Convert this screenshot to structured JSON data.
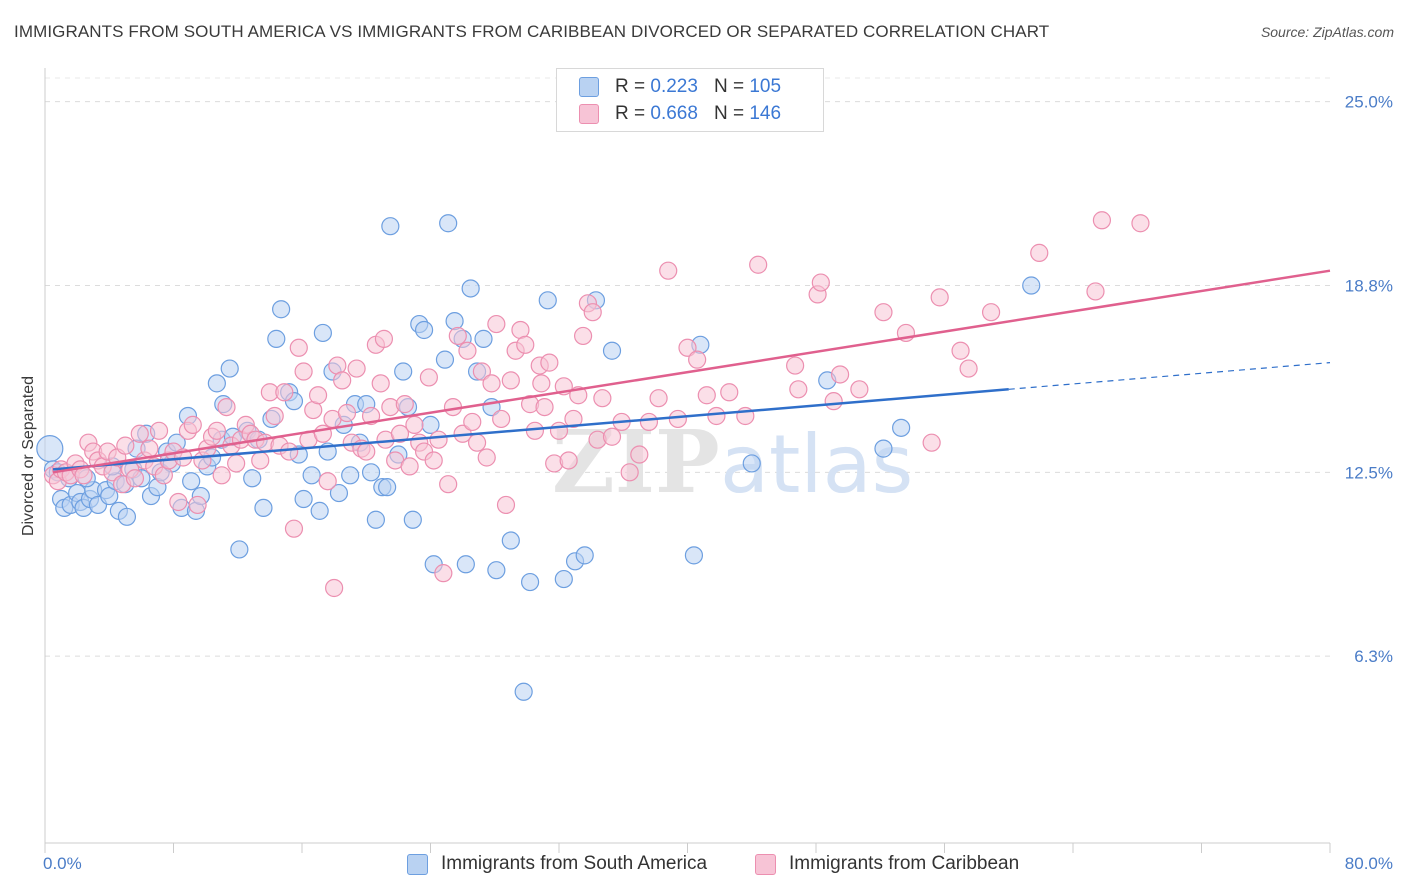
{
  "header": {
    "title": "IMMIGRANTS FROM SOUTH AMERICA VS IMMIGRANTS FROM CARIBBEAN DIVORCED OR SEPARATED CORRELATION CHART",
    "source": "Source: ZipAtlas.com"
  },
  "legend_stats": [
    {
      "r_label": "R =",
      "r_value": "0.223",
      "n_label": "N =",
      "n_value": "105"
    },
    {
      "r_label": "R =",
      "r_value": "0.668",
      "n_label": "N =",
      "n_value": "146"
    }
  ],
  "colors": {
    "blue_fill": "#b9d2f2",
    "blue_stroke": "#6d9fe0",
    "blue_line": "#2f6fca",
    "pink_fill": "#f7c4d6",
    "pink_stroke": "#ec8fb0",
    "pink_line": "#e0608e",
    "tick_text": "#4a7cc7"
  },
  "watermark": {
    "part1": "ZIP",
    "part2": "atlas"
  },
  "chart_data": {
    "type": "scatter",
    "title": "IMMIGRANTS FROM SOUTH AMERICA VS IMMIGRANTS FROM CARIBBEAN DIVORCED OR SEPARATED CORRELATION CHART",
    "xlabel": "",
    "ylabel": "Divorced or Separated",
    "xlim": [
      0,
      80
    ],
    "ylim": [
      0,
      26.0
    ],
    "x_tick_labels": [
      "0.0%",
      "80.0%"
    ],
    "y_ticks": [
      6.3,
      12.5,
      18.8,
      25.0
    ],
    "y_tick_labels": [
      "6.3%",
      "12.5%",
      "18.8%",
      "25.0%"
    ],
    "grid": "horizontal dashed",
    "legend_position": "bottom",
    "series": [
      {
        "name": "Immigrants from South America",
        "color": "#b9d2f2",
        "R": 0.223,
        "N": 105,
        "trend": {
          "x0": 0.5,
          "y0": 12.6,
          "x1": 60,
          "y1": 15.3,
          "dash_to_x": 80,
          "dash_to_y": 16.2
        },
        "points": [
          [
            0.3,
            13.3
          ],
          [
            0.5,
            12.6
          ],
          [
            0.8,
            12.5
          ],
          [
            1,
            11.6
          ],
          [
            1.2,
            11.3
          ],
          [
            1.5,
            12.3
          ],
          [
            1.6,
            11.4
          ],
          [
            2,
            11.8
          ],
          [
            2.2,
            11.5
          ],
          [
            2.4,
            11.3
          ],
          [
            2.8,
            11.6
          ],
          [
            3,
            11.9
          ],
          [
            3.3,
            11.4
          ],
          [
            3.8,
            11.9
          ],
          [
            4,
            11.7
          ],
          [
            4.4,
            12.2
          ],
          [
            4.6,
            11.2
          ],
          [
            5,
            12.1
          ],
          [
            5.1,
            11
          ],
          [
            5.5,
            12.6
          ],
          [
            5.7,
            13.3
          ],
          [
            6,
            12.3
          ],
          [
            6.3,
            13.8
          ],
          [
            6.6,
            11.7
          ],
          [
            7,
            12
          ],
          [
            7.2,
            12.5
          ],
          [
            7.6,
            13.2
          ],
          [
            7.9,
            12.8
          ],
          [
            8.2,
            13.5
          ],
          [
            8.5,
            11.3
          ],
          [
            8.9,
            14.4
          ],
          [
            9.1,
            12.2
          ],
          [
            9.4,
            11.2
          ],
          [
            9.7,
            11.7
          ],
          [
            10.1,
            12.7
          ],
          [
            10.4,
            13
          ],
          [
            10.7,
            15.5
          ],
          [
            11,
            13.6
          ],
          [
            11.5,
            16
          ],
          [
            11.7,
            13.7
          ],
          [
            12.1,
            9.9
          ],
          [
            12.6,
            13.9
          ],
          [
            12.9,
            12.3
          ],
          [
            13.3,
            13.6
          ],
          [
            13.6,
            11.3
          ],
          [
            14.1,
            14.3
          ],
          [
            14.4,
            17
          ],
          [
            14.7,
            18
          ],
          [
            15.2,
            15.2
          ],
          [
            15.5,
            14.9
          ],
          [
            15.8,
            13.1
          ],
          [
            16.1,
            11.6
          ],
          [
            16.6,
            12.4
          ],
          [
            17.1,
            11.2
          ],
          [
            17.3,
            17.2
          ],
          [
            17.6,
            13.2
          ],
          [
            17.9,
            15.9
          ],
          [
            18.3,
            11.8
          ],
          [
            18.6,
            14.1
          ],
          [
            19,
            12.4
          ],
          [
            19.3,
            14.8
          ],
          [
            19.6,
            13.5
          ],
          [
            20,
            14.8
          ],
          [
            20.3,
            12.5
          ],
          [
            20.6,
            10.9
          ],
          [
            21,
            12
          ],
          [
            21.3,
            12
          ],
          [
            21.5,
            20.8
          ],
          [
            22,
            13.1
          ],
          [
            22.3,
            15.9
          ],
          [
            22.6,
            14.7
          ],
          [
            22.9,
            10.9
          ],
          [
            23.3,
            17.5
          ],
          [
            23.6,
            17.3
          ],
          [
            24,
            14.1
          ],
          [
            24.2,
            9.4
          ],
          [
            24.9,
            16.3
          ],
          [
            25.1,
            20.9
          ],
          [
            25.5,
            17.6
          ],
          [
            26,
            17
          ],
          [
            26.2,
            9.4
          ],
          [
            26.5,
            18.7
          ],
          [
            26.9,
            15.9
          ],
          [
            27.3,
            17
          ],
          [
            27.8,
            14.7
          ],
          [
            28.1,
            9.2
          ],
          [
            29,
            10.2
          ],
          [
            30.2,
            8.8
          ],
          [
            31.3,
            18.3
          ],
          [
            32.3,
            8.9
          ],
          [
            33,
            9.5
          ],
          [
            33.6,
            9.7
          ],
          [
            34.3,
            18.3
          ],
          [
            35.3,
            16.6
          ],
          [
            40.4,
            9.7
          ],
          [
            40.8,
            16.8
          ],
          [
            44,
            12.8
          ],
          [
            48.7,
            15.6
          ],
          [
            52.2,
            13.3
          ],
          [
            53.3,
            14
          ],
          [
            61.4,
            18.8
          ],
          [
            29.8,
            5.1
          ],
          [
            11.1,
            14.8
          ],
          [
            2.6,
            12.3
          ],
          [
            4.2,
            12.7
          ]
        ]
      },
      {
        "name": "Immigrants from Caribbean",
        "color": "#f7c4d6",
        "R": 0.668,
        "N": 146,
        "trend": {
          "x0": 0.5,
          "y0": 12.5,
          "x1": 80,
          "y1": 19.3
        },
        "points": [
          [
            0.5,
            12.4
          ],
          [
            0.8,
            12.2
          ],
          [
            1,
            12.6
          ],
          [
            1.3,
            12.5
          ],
          [
            1.6,
            12.4
          ],
          [
            1.9,
            12.8
          ],
          [
            2.2,
            12.6
          ],
          [
            2.4,
            12.4
          ],
          [
            2.7,
            13.5
          ],
          [
            3,
            13.2
          ],
          [
            3.3,
            12.9
          ],
          [
            3.6,
            12.7
          ],
          [
            3.9,
            13.2
          ],
          [
            4.2,
            12.5
          ],
          [
            4.5,
            13
          ],
          [
            4.8,
            12.1
          ],
          [
            5,
            13.4
          ],
          [
            5.3,
            12.6
          ],
          [
            5.6,
            12.3
          ],
          [
            5.9,
            13.8
          ],
          [
            6.2,
            12.9
          ],
          [
            6.5,
            13.3
          ],
          [
            6.8,
            12.7
          ],
          [
            7.1,
            13.9
          ],
          [
            7.4,
            12.4
          ],
          [
            7.7,
            12.9
          ],
          [
            8,
            13.2
          ],
          [
            8.3,
            11.5
          ],
          [
            8.6,
            13
          ],
          [
            8.9,
            13.9
          ],
          [
            9.2,
            14.1
          ],
          [
            9.5,
            11.4
          ],
          [
            9.8,
            12.9
          ],
          [
            10.1,
            13.3
          ],
          [
            10.4,
            13.7
          ],
          [
            10.7,
            13.9
          ],
          [
            11,
            12.4
          ],
          [
            11.3,
            14.7
          ],
          [
            11.6,
            13.4
          ],
          [
            11.9,
            12.8
          ],
          [
            12.2,
            13.6
          ],
          [
            12.5,
            14.1
          ],
          [
            12.8,
            13.8
          ],
          [
            13.1,
            13.6
          ],
          [
            13.4,
            12.9
          ],
          [
            13.7,
            13.5
          ],
          [
            14,
            15.2
          ],
          [
            14.3,
            14.4
          ],
          [
            14.6,
            13.4
          ],
          [
            14.9,
            15.2
          ],
          [
            15.2,
            13.2
          ],
          [
            15.5,
            10.6
          ],
          [
            15.8,
            16.7
          ],
          [
            16.1,
            15.9
          ],
          [
            16.4,
            13.6
          ],
          [
            16.7,
            14.6
          ],
          [
            17,
            15.1
          ],
          [
            17.3,
            13.8
          ],
          [
            17.6,
            12.2
          ],
          [
            17.9,
            14.3
          ],
          [
            18.2,
            16.1
          ],
          [
            18.5,
            15.6
          ],
          [
            18.8,
            14.5
          ],
          [
            19.1,
            13.5
          ],
          [
            19.4,
            16
          ],
          [
            19.7,
            13.3
          ],
          [
            20,
            13.2
          ],
          [
            20.3,
            14.4
          ],
          [
            20.6,
            16.8
          ],
          [
            20.9,
            15.5
          ],
          [
            21.2,
            13.6
          ],
          [
            21.5,
            14.7
          ],
          [
            21.8,
            12.9
          ],
          [
            22.1,
            13.8
          ],
          [
            22.4,
            14.8
          ],
          [
            22.7,
            12.7
          ],
          [
            23,
            14.1
          ],
          [
            23.3,
            13.5
          ],
          [
            23.6,
            13.2
          ],
          [
            23.9,
            15.7
          ],
          [
            24.2,
            12.9
          ],
          [
            24.5,
            13.6
          ],
          [
            24.8,
            9.1
          ],
          [
            25.1,
            12.1
          ],
          [
            25.4,
            14.7
          ],
          [
            25.7,
            17.1
          ],
          [
            26,
            13.8
          ],
          [
            26.3,
            16.6
          ],
          [
            26.6,
            14.2
          ],
          [
            26.9,
            13.5
          ],
          [
            27.2,
            15.9
          ],
          [
            27.5,
            13
          ],
          [
            27.8,
            15.5
          ],
          [
            28.1,
            17.5
          ],
          [
            28.4,
            14.3
          ],
          [
            28.7,
            11.4
          ],
          [
            29,
            15.6
          ],
          [
            29.3,
            16.6
          ],
          [
            29.6,
            17.3
          ],
          [
            29.9,
            16.8
          ],
          [
            30.2,
            14.8
          ],
          [
            30.5,
            13.9
          ],
          [
            30.8,
            16.1
          ],
          [
            31.1,
            14.7
          ],
          [
            31.4,
            16.2
          ],
          [
            31.7,
            12.8
          ],
          [
            32,
            13.9
          ],
          [
            32.3,
            15.4
          ],
          [
            32.6,
            12.9
          ],
          [
            32.9,
            14.3
          ],
          [
            33.2,
            15.1
          ],
          [
            33.5,
            17.1
          ],
          [
            33.8,
            18.2
          ],
          [
            34.1,
            17.9
          ],
          [
            34.4,
            13.6
          ],
          [
            34.7,
            15
          ],
          [
            35.3,
            13.7
          ],
          [
            35.9,
            14.2
          ],
          [
            36.4,
            12.5
          ],
          [
            37,
            13.1
          ],
          [
            37.6,
            14.2
          ],
          [
            38.2,
            15
          ],
          [
            38.8,
            19.3
          ],
          [
            39.4,
            14.3
          ],
          [
            40,
            16.7
          ],
          [
            40.6,
            16.3
          ],
          [
            41.2,
            15.1
          ],
          [
            41.8,
            14.4
          ],
          [
            42.6,
            15.2
          ],
          [
            43.6,
            14.4
          ],
          [
            44.4,
            19.5
          ],
          [
            46.7,
            16.1
          ],
          [
            46.9,
            15.3
          ],
          [
            48.1,
            18.5
          ],
          [
            48.3,
            18.9
          ],
          [
            49.1,
            14.9
          ],
          [
            49.5,
            15.8
          ],
          [
            50.7,
            15.3
          ],
          [
            52.2,
            17.9
          ],
          [
            53.6,
            17.2
          ],
          [
            55.2,
            13.5
          ],
          [
            55.7,
            18.4
          ],
          [
            57,
            16.6
          ],
          [
            57.5,
            16
          ],
          [
            58.9,
            17.9
          ],
          [
            61.9,
            19.9
          ],
          [
            65.4,
            18.6
          ],
          [
            65.8,
            21
          ],
          [
            68.2,
            20.9
          ],
          [
            18,
            8.6
          ],
          [
            30.9,
            15.5
          ],
          [
            21.1,
            17
          ]
        ]
      }
    ]
  },
  "bottom_legend": {
    "blue_label": "Immigrants from South America",
    "pink_label": "Immigrants from Caribbean"
  }
}
